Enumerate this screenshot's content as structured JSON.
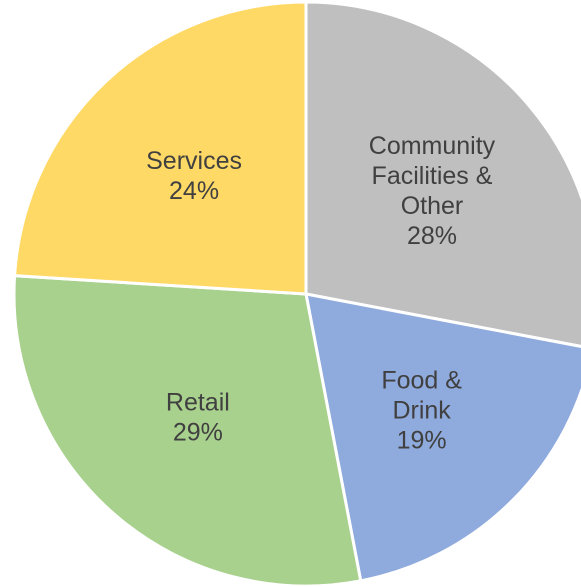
{
  "chart_data": {
    "type": "pie",
    "title": "",
    "start_angle_deg": 0,
    "direction": "clockwise",
    "legend": "none",
    "slices": [
      {
        "label_lines": [
          "Community",
          "Facilities &",
          "Other"
        ],
        "value": 28,
        "value_label": "28%",
        "color": "#BFBFBF"
      },
      {
        "label_lines": [
          "Food &",
          "Drink"
        ],
        "value": 19,
        "value_label": "19%",
        "color": "#8FAADC"
      },
      {
        "label_lines": [
          "Retail"
        ],
        "value": 29,
        "value_label": "29%",
        "color": "#A9D18E"
      },
      {
        "label_lines": [
          "Services"
        ],
        "value": 24,
        "value_label": "24%",
        "color": "#FFD966"
      }
    ]
  }
}
